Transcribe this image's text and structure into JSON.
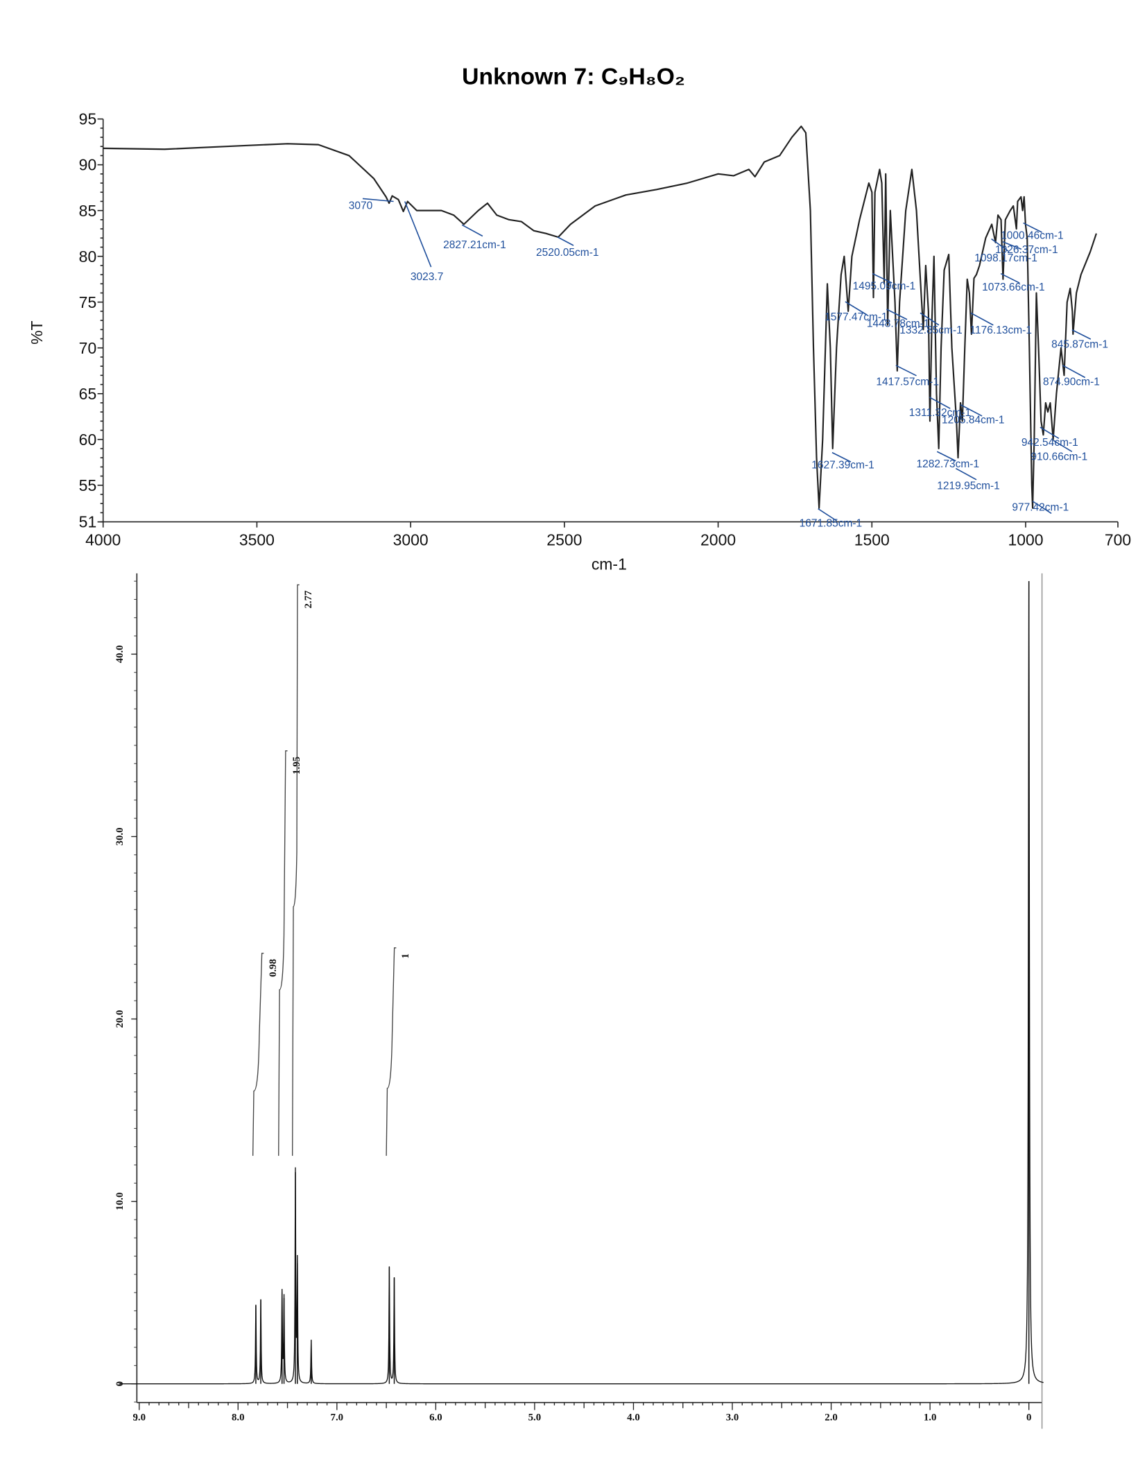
{
  "title": "Unknown 7: C₉H₈O₂",
  "chart_data": [
    {
      "type": "line",
      "xlabel": "cm-1",
      "ylabel": "%T",
      "xlim": [
        4000,
        700
      ],
      "ylim": [
        51,
        95
      ],
      "x_ticks": [
        "4000",
        "3500",
        "3000",
        "2500",
        "2000",
        "1500",
        "1000",
        "700"
      ],
      "y_ticks": [
        "95",
        "90",
        "85",
        "80",
        "75",
        "70",
        "65",
        "60",
        "55",
        "51"
      ],
      "line_color": "#222222",
      "label_color": "#1f4f9c",
      "series": [
        {
          "x": [
            4000,
            3800,
            3600,
            3400,
            3300,
            3200,
            3120,
            3080,
            3070,
            3060,
            3040,
            3023.7,
            3010,
            2980,
            2900,
            2860,
            2827,
            2780,
            2750,
            2720,
            2680,
            2640,
            2600,
            2560,
            2520,
            2480,
            2400,
            2300,
            2200,
            2100,
            2000,
            1950,
            1900,
            1880,
            1850,
            1800,
            1760,
            1730,
            1715,
            1700,
            1690,
            1680,
            1671.85,
            1660,
            1645,
            1635,
            1627.39,
            1615,
            1600,
            1590,
            1577,
            1565,
            1540,
            1510,
            1500,
            1495,
            1490,
            1475,
            1468,
            1460,
            1455,
            1448.78,
            1440,
            1425,
            1417.57,
            1410,
            1390,
            1370,
            1355,
            1340,
            1332.85,
            1325,
            1316,
            1311.32,
            1305,
            1298,
            1290,
            1282.73,
            1275,
            1265,
            1250,
            1240,
            1225,
            1219.95,
            1212,
            1205.84,
            1198,
            1190,
            1183,
            1176.13,
            1168,
            1160,
            1150,
            1130,
            1110,
            1098,
            1090,
            1080,
            1073.66,
            1066,
            1050,
            1040,
            1030,
            1026,
            1015,
            1010,
            1005,
            1000.46,
            995,
            988,
            980,
            977.42,
            972,
            965,
            958,
            950,
            942.54,
            935,
            928,
            920,
            910.66,
            900,
            885,
            874.9,
            865,
            855,
            848,
            845.87,
            835,
            820,
            790,
            770
          ],
          "y": [
            91.8,
            91.7,
            92.0,
            92.3,
            92.2,
            91,
            88.5,
            86.5,
            85.8,
            86.6,
            86.2,
            84.9,
            86,
            85,
            85,
            84.5,
            83.5,
            85,
            85.8,
            84.5,
            84,
            83.8,
            82.8,
            82.5,
            82.1,
            83.5,
            85.5,
            86.7,
            87.3,
            88,
            89,
            88.8,
            89.5,
            88.7,
            90.3,
            91,
            93,
            94.2,
            93.5,
            85,
            70,
            58,
            52.5,
            60,
            77,
            70,
            59,
            70,
            78,
            80,
            74,
            80,
            84,
            88,
            87,
            75.5,
            87,
            89.5,
            88,
            77,
            89,
            72.5,
            85,
            75,
            67.5,
            75,
            85,
            89.5,
            85,
            76,
            72,
            79,
            74,
            62,
            73,
            80,
            65,
            59,
            70,
            78.5,
            80.2,
            70,
            62,
            58,
            64,
            62,
            70,
            77.5,
            76,
            71.5,
            77.6,
            78,
            79,
            82,
            83.5,
            81.5,
            84.5,
            84,
            77.5,
            84,
            85,
            85.5,
            83,
            86,
            86.5,
            85,
            86.5,
            83.5,
            82,
            70,
            55,
            52.5,
            60,
            76,
            70,
            62,
            60.5,
            64,
            63,
            64,
            60,
            65,
            70,
            67,
            75,
            76.5,
            74,
            71.5,
            76,
            78,
            80.5,
            82.5
          ]
        }
      ],
      "peak_labels": [
        "3070",
        "3023.7",
        "2827.21cm-1",
        "2520.05cm-1",
        "1671.85cm-1",
        "1627.39cm-1",
        "1577.47cm-1",
        "1495.09cm-1",
        "1448.78cm-1",
        "1417.57cm-1",
        "1332.85cm-1",
        "1311.32cm-1",
        "1282.73cm-1",
        "1219.95cm-1",
        "1205.84cm-1",
        "1176.13cm-1",
        "1098.17cm-1",
        "1073.66cm-1",
        "1026.37cm-1",
        "1000.46cm-1",
        "977.42cm-1",
        "942.54cm-1",
        "910.66cm-1",
        "874.90cm-1",
        "845.87cm-1"
      ]
    },
    {
      "type": "line",
      "xlim": [
        9.2,
        -0.15
      ],
      "ylim": [
        -2,
        44
      ],
      "x_ticks": [
        "9.0",
        "8.0",
        "7.0",
        "6.0",
        "5.0",
        "4.0",
        "3.0",
        "2.0",
        "1.0",
        "0"
      ],
      "y_ticks": [
        "0",
        "10.0",
        "20.0",
        "30.0",
        "40.0"
      ],
      "peaks": [
        {
          "ppm": 7.82,
          "height": 4.3
        },
        {
          "ppm": 7.77,
          "height": 4.6
        },
        {
          "ppm": 7.555,
          "height": 5.0
        },
        {
          "ppm": 7.535,
          "height": 4.7
        },
        {
          "ppm": 7.42,
          "height": 11.6
        },
        {
          "ppm": 7.4,
          "height": 6.6
        },
        {
          "ppm": 7.26,
          "height": 2.4
        },
        {
          "ppm": 6.47,
          "height": 6.4
        },
        {
          "ppm": 6.42,
          "height": 5.8
        },
        {
          "ppm": 0.0,
          "height": 44
        }
      ],
      "integrals": [
        {
          "from": 7.85,
          "to": 7.74,
          "start": 12.5,
          "end": 23.6,
          "label": "0.98"
        },
        {
          "from": 7.59,
          "to": 7.5,
          "start": 12.5,
          "end": 34.7,
          "label": "1.95"
        },
        {
          "from": 7.45,
          "to": 7.38,
          "start": 12.5,
          "end": 43.8,
          "label": "2.77"
        },
        {
          "from": 6.5,
          "to": 6.4,
          "start": 12.5,
          "end": 23.9,
          "label": "1"
        }
      ]
    }
  ]
}
